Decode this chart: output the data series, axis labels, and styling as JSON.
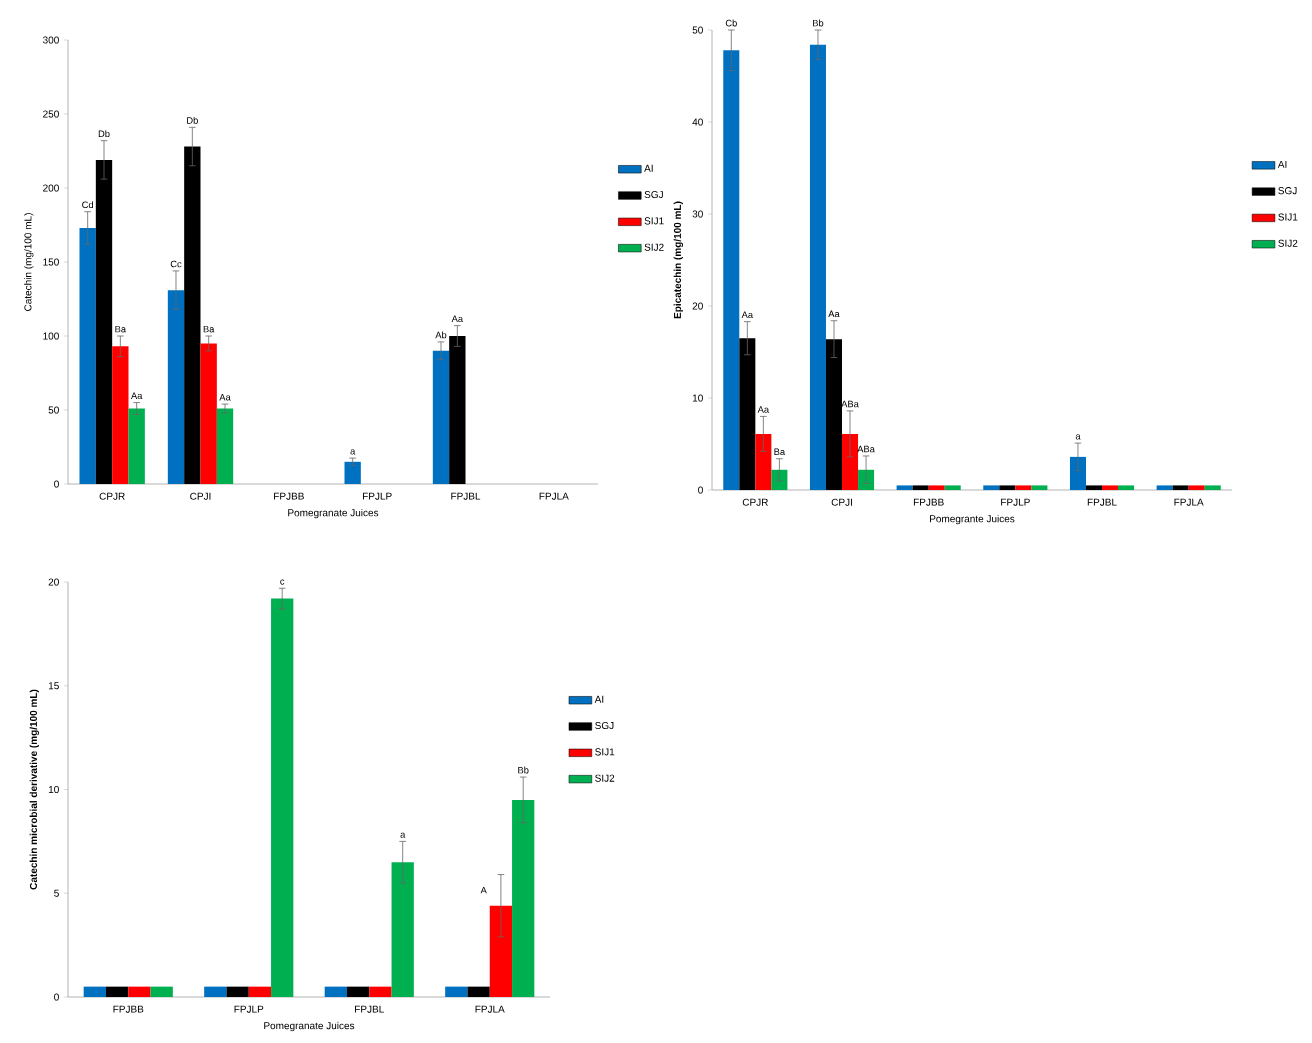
{
  "chart_data": [
    {
      "type": "bar",
      "ylabel": "Catechin (mg/100 mL)",
      "xlabel": "Pomegranate Juices",
      "categories": [
        "CPJR",
        "CPJI",
        "FPJBB",
        "FPJLP",
        "FPJBL",
        "FPJLA"
      ],
      "ylim": [
        0,
        300
      ],
      "yticks": [
        0,
        50,
        100,
        150,
        200,
        250,
        300
      ],
      "legend": "right",
      "series": [
        {
          "name": "AI",
          "color": "#0070c0",
          "values": [
            173,
            131,
            0,
            15,
            90,
            0
          ],
          "errors": [
            11,
            13,
            null,
            2.5,
            6,
            null
          ],
          "value_labels": [
            "Cd",
            "Cc",
            null,
            "a",
            "Ab",
            null
          ]
        },
        {
          "name": "SGJ",
          "color": "#000000",
          "values": [
            219,
            228,
            0,
            0,
            100,
            0
          ],
          "errors": [
            13,
            13,
            null,
            null,
            7,
            null
          ],
          "value_labels": [
            "Db",
            "Db",
            null,
            null,
            "Aa",
            null
          ]
        },
        {
          "name": "SIJ1",
          "color": "#ff0000",
          "values": [
            93,
            95,
            0,
            0,
            0,
            0
          ],
          "errors": [
            7,
            5,
            null,
            null,
            null,
            null
          ],
          "value_labels": [
            "Ba",
            "Ba",
            null,
            null,
            null,
            null
          ]
        },
        {
          "name": "SIJ2",
          "color": "#00b050",
          "values": [
            51,
            51,
            0,
            0,
            0,
            0
          ],
          "errors": [
            4,
            3,
            null,
            null,
            null,
            null
          ],
          "value_labels": [
            "Aa",
            "Aa",
            null,
            null,
            null,
            null
          ]
        }
      ]
    },
    {
      "type": "bar",
      "ylabel": "Epicatechin (mg/100 mL)",
      "xlabel": "Pomegrante Juices",
      "categories": [
        "CPJR",
        "CPJI",
        "FPJBB",
        "FPJLP",
        "FPJBL",
        "FPJLA"
      ],
      "ylim": [
        0,
        50
      ],
      "yticks": [
        0,
        10,
        20,
        30,
        40,
        50
      ],
      "legend": "right",
      "series": [
        {
          "name": "AI",
          "color": "#0070c0",
          "values": [
            47.8,
            48.4,
            0.5,
            0.5,
            3.6,
            0.5
          ],
          "errors": [
            2.2,
            1.6,
            null,
            null,
            1.5,
            null
          ],
          "value_labels": [
            "Cb",
            "Bb",
            null,
            null,
            "a",
            null
          ]
        },
        {
          "name": "SGJ",
          "color": "#000000",
          "values": [
            16.5,
            16.4,
            0.5,
            0.5,
            0.5,
            0.5
          ],
          "errors": [
            1.8,
            2.0,
            null,
            null,
            null,
            null
          ],
          "value_labels": [
            "Aa",
            "Aa",
            null,
            null,
            null,
            null
          ]
        },
        {
          "name": "SIJ1",
          "color": "#ff0000",
          "values": [
            6.1,
            6.1,
            0.5,
            0.5,
            0.5,
            0.5
          ],
          "errors": [
            1.9,
            2.5,
            null,
            null,
            null,
            null
          ],
          "value_labels": [
            "Aa",
            "ABa",
            null,
            null,
            null,
            null
          ]
        },
        {
          "name": "SIJ2",
          "color": "#00b050",
          "values": [
            2.2,
            2.2,
            0.5,
            0.5,
            0.5,
            0.5
          ],
          "errors": [
            1.2,
            1.5,
            null,
            null,
            null,
            null
          ],
          "value_labels": [
            "Ba",
            "ABa",
            null,
            null,
            null,
            null
          ]
        }
      ]
    },
    {
      "type": "bar",
      "ylabel": "Catechin microbial derivative (mg/100 mL)",
      "xlabel": "Pomegranate Juices",
      "categories": [
        "FPJBB",
        "FPJLP",
        "FPJBL",
        "FPJLA"
      ],
      "ylim": [
        0,
        20
      ],
      "yticks": [
        0,
        5,
        10,
        15,
        20
      ],
      "legend": "right",
      "series": [
        {
          "name": "AI",
          "color": "#0070c0",
          "values": [
            0.5,
            0.5,
            0.5,
            0.5
          ],
          "errors": [
            null,
            null,
            null,
            null
          ]
        },
        {
          "name": "SGJ",
          "color": "#000000",
          "values": [
            0.5,
            0.5,
            0.5,
            0.5
          ],
          "errors": [
            null,
            null,
            null,
            null
          ]
        },
        {
          "name": "SIJ1",
          "color": "#ff0000",
          "values": [
            0.5,
            0.5,
            0.5,
            4.4
          ],
          "errors": [
            null,
            null,
            null,
            1.5
          ],
          "value_labels": [
            null,
            null,
            null,
            "A"
          ]
        },
        {
          "name": "SIJ2",
          "color": "#00b050",
          "values": [
            0.5,
            19.2,
            6.5,
            9.5
          ],
          "errors": [
            null,
            0.5,
            1.0,
            1.1
          ],
          "value_labels": [
            null,
            "c",
            "a",
            "Bb"
          ]
        }
      ]
    }
  ]
}
